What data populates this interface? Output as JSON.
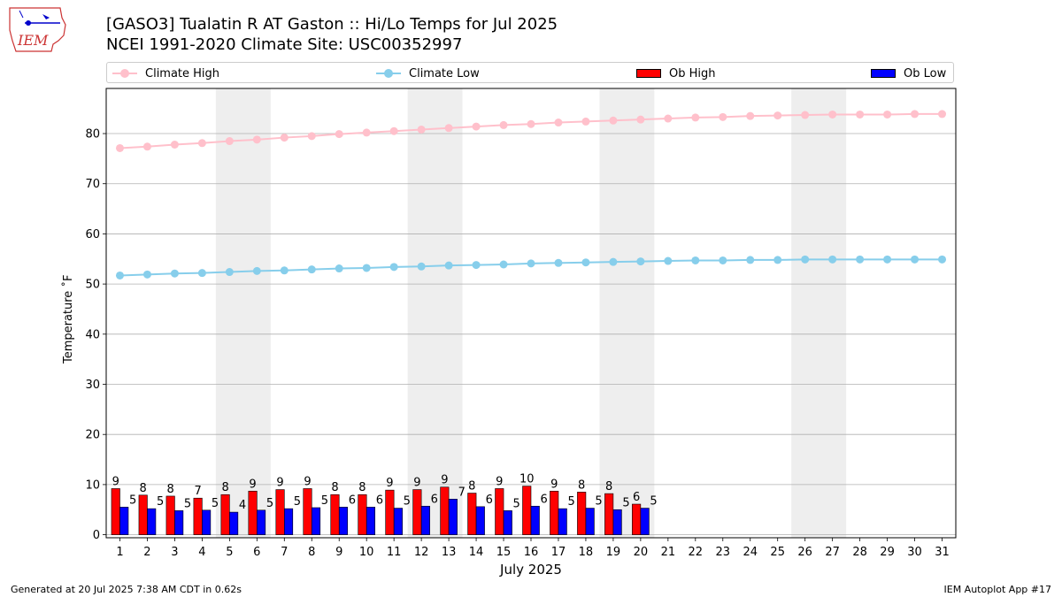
{
  "header": {
    "logo_text": "IEM",
    "title_line1": "[GASO3] Tualatin R  AT Gaston :: Hi/Lo Temps for Jul 2025",
    "title_line2": "NCEI 1991-2020 Climate Site: USC00352997"
  },
  "legend": {
    "items": [
      {
        "label": "Climate High",
        "kind": "line-marker",
        "color": "#ffc0cb"
      },
      {
        "label": "Climate Low",
        "kind": "line-marker",
        "color": "#87ceeb"
      },
      {
        "label": "Ob High",
        "kind": "bar",
        "color": "#ff0000"
      },
      {
        "label": "Ob Low",
        "kind": "bar",
        "color": "#0000ff"
      }
    ]
  },
  "footer": {
    "left": "Generated at 20 Jul 2025 7:38 AM CDT in 0.62s",
    "right": "IEM Autoplot App #17"
  },
  "chart_data": {
    "type": "bar",
    "xlabel": "July 2025",
    "ylabel": "Temperature ˚F",
    "ylim": [
      -0.6,
      89
    ],
    "yticks": [
      0,
      10,
      20,
      30,
      40,
      50,
      60,
      70,
      80
    ],
    "xlim": [
      0.5,
      31.5
    ],
    "grid": "horizontal",
    "legend_position": "top",
    "weekend_days": [
      5,
      6,
      12,
      13,
      19,
      20,
      26,
      27
    ],
    "days": [
      1,
      2,
      3,
      4,
      5,
      6,
      7,
      8,
      9,
      10,
      11,
      12,
      13,
      14,
      15,
      16,
      17,
      18,
      19,
      20,
      21,
      22,
      23,
      24,
      25,
      26,
      27,
      28,
      29,
      30,
      31
    ],
    "ob_high": {
      "name": "Ob High",
      "color": "#ff0000",
      "values": [
        9.2,
        7.9,
        7.7,
        7.3,
        8.0,
        8.7,
        9.0,
        9.2,
        8.0,
        8.0,
        8.9,
        9.0,
        9.5,
        8.3,
        9.2,
        9.7,
        8.7,
        8.5,
        8.2,
        6.1
      ]
    },
    "ob_high_labels": [
      "9",
      "8",
      "8",
      "7",
      "8",
      "9",
      "9",
      "9",
      "8",
      "8",
      "9",
      "9",
      "9",
      "8",
      "9",
      "10",
      "9",
      "8",
      "8",
      "6"
    ],
    "ob_low": {
      "name": "Ob Low",
      "color": "#0000ff",
      "values": [
        5.5,
        5.2,
        4.8,
        4.9,
        4.5,
        4.9,
        5.2,
        5.4,
        5.5,
        5.5,
        5.3,
        5.7,
        7.1,
        5.6,
        4.8,
        5.7,
        5.2,
        5.3,
        5.0,
        5.3
      ]
    },
    "ob_low_labels": [
      "5",
      "5",
      "5",
      "5",
      "4",
      "5",
      "5",
      "5",
      "6",
      "6",
      "5",
      "6",
      "7",
      "6",
      "5",
      "6",
      "5",
      "5",
      "5",
      "5"
    ],
    "climate_high": {
      "name": "Climate High",
      "color": "#ffc0cb",
      "values": [
        77.1,
        77.4,
        77.8,
        78.1,
        78.5,
        78.8,
        79.2,
        79.5,
        79.9,
        80.2,
        80.5,
        80.8,
        81.1,
        81.4,
        81.7,
        81.9,
        82.2,
        82.4,
        82.6,
        82.8,
        83.0,
        83.2,
        83.3,
        83.5,
        83.6,
        83.7,
        83.8,
        83.8,
        83.8,
        83.9,
        83.9
      ]
    },
    "climate_low": {
      "name": "Climate Low",
      "color": "#87ceeb",
      "values": [
        51.7,
        51.9,
        52.1,
        52.2,
        52.4,
        52.6,
        52.7,
        52.9,
        53.1,
        53.2,
        53.4,
        53.5,
        53.7,
        53.8,
        53.9,
        54.1,
        54.2,
        54.3,
        54.4,
        54.5,
        54.6,
        54.7,
        54.7,
        54.8,
        54.8,
        54.9,
        54.9,
        54.9,
        54.9,
        54.9,
        54.9
      ]
    }
  }
}
